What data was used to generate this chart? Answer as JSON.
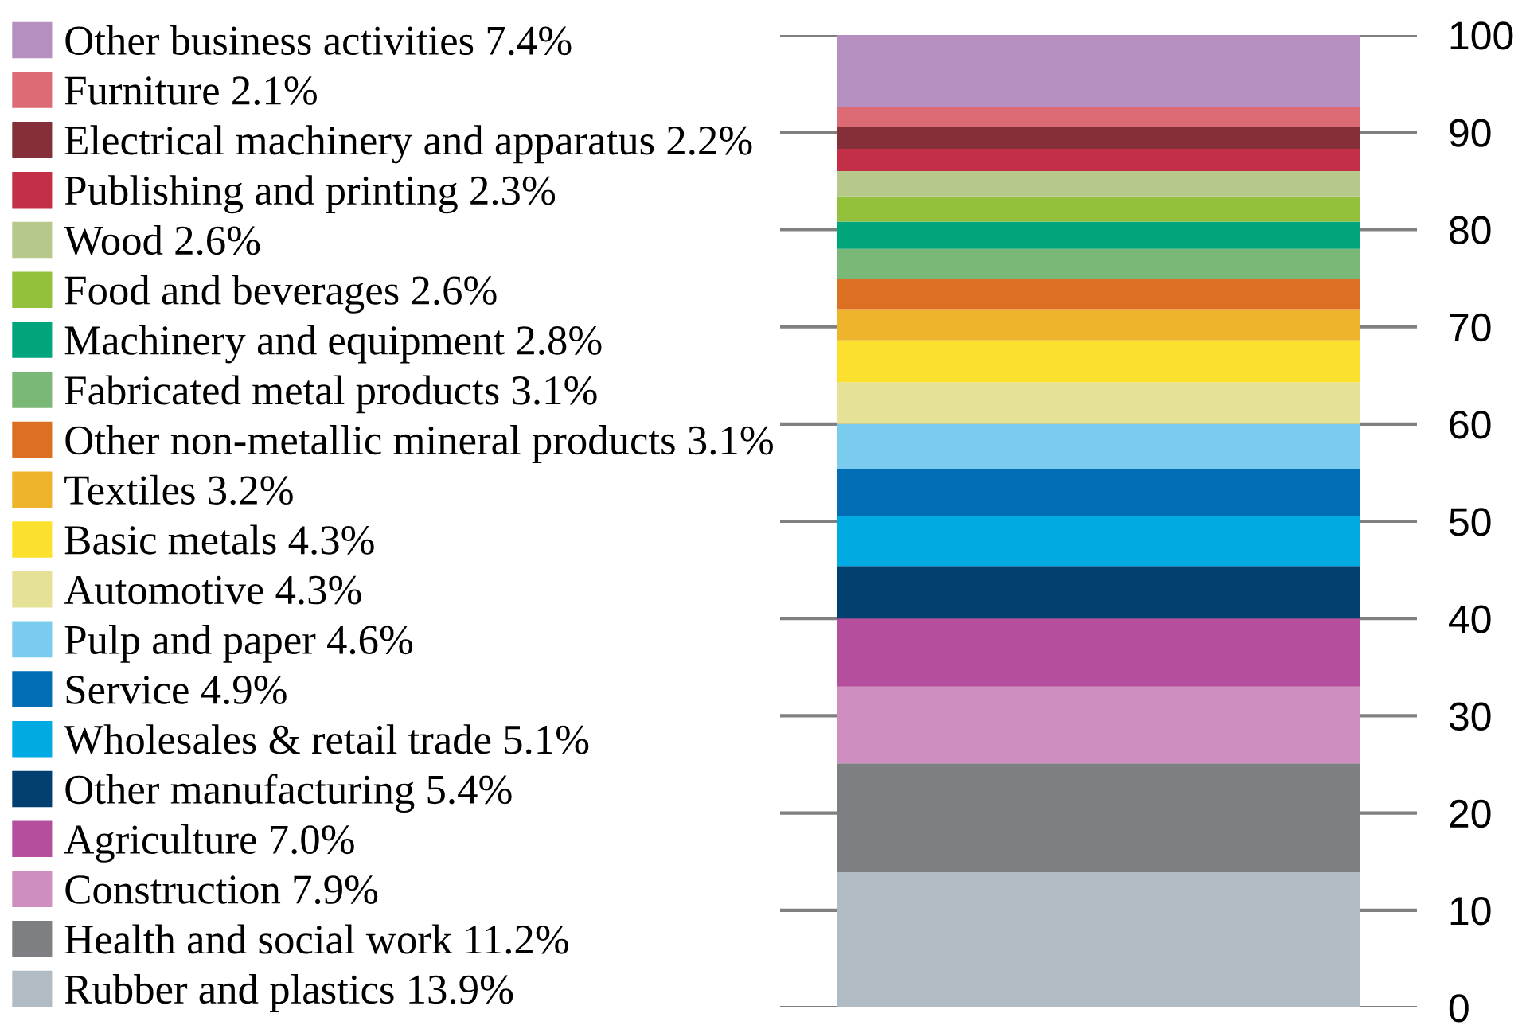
{
  "chart_data": {
    "type": "bar",
    "stacked": true,
    "categories": [
      null
    ],
    "series": [
      {
        "name": "Rubber and plastics 13.9%",
        "color": "#b1bbc4",
        "values": [
          13.9
        ]
      },
      {
        "name": "Health and social work 11.2%",
        "color": "#7e7f83",
        "values": [
          11.2
        ]
      },
      {
        "name": "Construction 7.9%",
        "color": "#cf8ec0",
        "values": [
          7.9
        ]
      },
      {
        "name": "Agriculture 7.0%",
        "color": "#b54e9c",
        "values": [
          7.0
        ]
      },
      {
        "name": "Other manufacturing 5.4%",
        "color": "#003f70",
        "values": [
          5.4
        ]
      },
      {
        "name": "Wholesales & retail trade 5.1%",
        "color": "#00abe4",
        "values": [
          5.1
        ]
      },
      {
        "name": "Service 4.9%",
        "color": "#006db4",
        "values": [
          4.9
        ]
      },
      {
        "name": "Pulp and paper 4.6%",
        "color": "#7bcbef",
        "values": [
          4.6
        ]
      },
      {
        "name": "Automotive 4.3%",
        "color": "#e5e196",
        "values": [
          4.3
        ]
      },
      {
        "name": "Basic metals 4.3%",
        "color": "#fbe12d",
        "values": [
          4.3
        ]
      },
      {
        "name": "Textiles 3.2%",
        "color": "#eeb42b",
        "values": [
          3.2
        ]
      },
      {
        "name": "Other non-metallic mineral products 3.1%",
        "color": "#dc6f21",
        "values": [
          3.1
        ]
      },
      {
        "name": "Fabricated metal products 3.1%",
        "color": "#7ab877",
        "values": [
          3.1
        ]
      },
      {
        "name": "Machinery and equipment 2.8%",
        "color": "#00a57c",
        "values": [
          2.8
        ]
      },
      {
        "name": "Food and beverages 2.6%",
        "color": "#93c13b",
        "values": [
          2.6
        ]
      },
      {
        "name": "Wood 2.6%",
        "color": "#b6c98b",
        "values": [
          2.6
        ]
      },
      {
        "name": "Publishing and printing 2.3%",
        "color": "#c32f46",
        "values": [
          2.3
        ]
      },
      {
        "name": "Electrical machinery and apparatus 2.2%",
        "color": "#842f3a",
        "values": [
          2.2
        ]
      },
      {
        "name": "Furniture 2.1%",
        "color": "#dc6b75",
        "values": [
          2.1
        ]
      },
      {
        "name": "Other business activities 7.4%",
        "color": "#b48fc0",
        "values": [
          7.4
        ]
      }
    ],
    "ylim": [
      0,
      100
    ],
    "yticks": [
      0,
      10,
      20,
      30,
      40,
      50,
      60,
      70,
      80,
      90,
      100
    ],
    "grid": "y",
    "legend": "left",
    "tick_labels": "y"
  }
}
